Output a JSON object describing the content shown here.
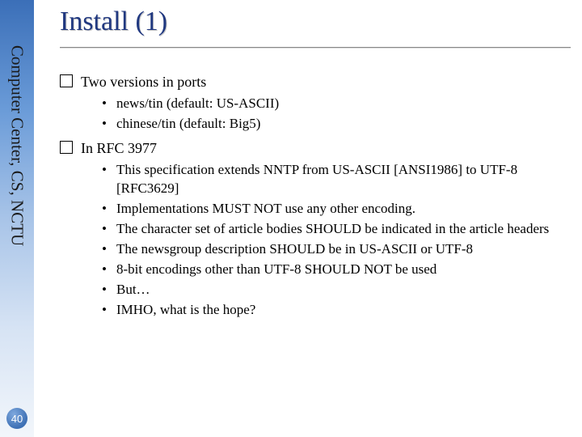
{
  "sidebar": {
    "label": "Computer Center, CS, NCTU",
    "gradient_colors": [
      "#3b6fb8",
      "#6a9bd8",
      "#a8c4e8",
      "#d6e3f4",
      "#f2f6fb"
    ],
    "text_color": "#1a1a1a",
    "font_size_pt": 16
  },
  "page_number": {
    "value": "40",
    "bg_gradient": [
      "#7ea8de",
      "#3e70b4"
    ],
    "text_color": "#ffffff"
  },
  "title": {
    "text": "Install (1)",
    "color": "#203880",
    "font_size_pt": 26,
    "shadow_color": "#c8c8c8"
  },
  "body": {
    "text_color": "#000000",
    "font_size_pt": 14,
    "sub_font_size_pt": 13,
    "items": [
      {
        "label": "Two versions in ports",
        "sub": [
          "news/tin (default: US-ASCII)",
          "chinese/tin (default: Big5)"
        ]
      },
      {
        "label": "In RFC 3977",
        "sub": [
          "This specification extends NNTP from US-ASCII [ANSI1986] to UTF-8 [RFC3629]",
          "Implementations MUST NOT use any other encoding.",
          "The character set of article bodies SHOULD be indicated in the article headers",
          "The newsgroup description SHOULD be in US-ASCII or UTF-8",
          "8-bit encodings other than UTF-8 SHOULD NOT be used",
          "But…",
          "IMHO, what is the hope?"
        ]
      }
    ]
  },
  "underline_color": "#888888",
  "background_color": "#ffffff"
}
